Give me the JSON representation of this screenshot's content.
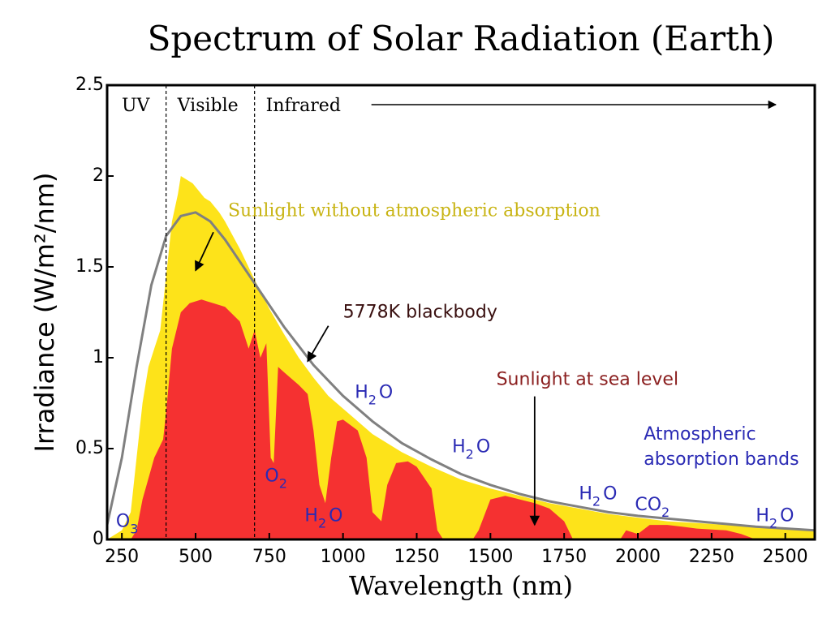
{
  "chart_data": {
    "type": "area",
    "title": "Spectrum of Solar Radiation (Earth)",
    "xlabel": "Wavelength (nm)",
    "ylabel": "Irradiance (W/m²/nm)",
    "xlim": [
      200,
      2600
    ],
    "ylim": [
      0,
      2.5
    ],
    "x_ticks": [
      250,
      500,
      750,
      1000,
      1250,
      1500,
      1750,
      2000,
      2250,
      2500
    ],
    "x_tick_labels": [
      "250",
      "500",
      "750",
      "1000",
      "1250",
      "1500",
      "1750",
      "2000",
      "2250",
      "2500"
    ],
    "y_ticks": [
      0,
      0.5,
      1,
      1.5,
      2,
      2.5
    ],
    "y_tick_labels": [
      "0",
      "0.5",
      "1",
      "1.5",
      "2",
      "2.5"
    ],
    "grid": false,
    "colors": {
      "top_of_atmosphere": "#fde31a",
      "sea_level": "#f53131",
      "blackbody": "#808080",
      "absorption_label": "#2a2ab4",
      "top_label": "#c8b414",
      "sea_label": "#8b2020",
      "blackbody_label": "#3a1010"
    },
    "regions": [
      {
        "label": "UV",
        "x_range": [
          200,
          400
        ]
      },
      {
        "label": "Visible",
        "x_range": [
          400,
          700
        ]
      },
      {
        "label": "Infrared",
        "x_range": [
          700,
          2600
        ]
      }
    ],
    "series": [
      {
        "name": "Sunlight without atmospheric absorption",
        "kind": "area",
        "points": [
          [
            200,
            0.0
          ],
          [
            250,
            0.05
          ],
          [
            280,
            0.15
          ],
          [
            300,
            0.45
          ],
          [
            320,
            0.75
          ],
          [
            340,
            0.95
          ],
          [
            360,
            1.05
          ],
          [
            380,
            1.15
          ],
          [
            400,
            1.45
          ],
          [
            420,
            1.75
          ],
          [
            440,
            1.9
          ],
          [
            450,
            2.0
          ],
          [
            470,
            1.98
          ],
          [
            490,
            1.96
          ],
          [
            510,
            1.92
          ],
          [
            530,
            1.88
          ],
          [
            550,
            1.86
          ],
          [
            580,
            1.8
          ],
          [
            600,
            1.75
          ],
          [
            650,
            1.6
          ],
          [
            700,
            1.43
          ],
          [
            750,
            1.27
          ],
          [
            800,
            1.13
          ],
          [
            850,
            1.0
          ],
          [
            900,
            0.89
          ],
          [
            950,
            0.79
          ],
          [
            1000,
            0.72
          ],
          [
            1100,
            0.58
          ],
          [
            1200,
            0.48
          ],
          [
            1300,
            0.4
          ],
          [
            1400,
            0.33
          ],
          [
            1500,
            0.28
          ],
          [
            1600,
            0.24
          ],
          [
            1700,
            0.2
          ],
          [
            1800,
            0.17
          ],
          [
            1900,
            0.14
          ],
          [
            2000,
            0.12
          ],
          [
            2100,
            0.1
          ],
          [
            2200,
            0.09
          ],
          [
            2300,
            0.08
          ],
          [
            2400,
            0.07
          ],
          [
            2500,
            0.06
          ],
          [
            2600,
            0.05
          ]
        ]
      },
      {
        "name": "Sunlight at sea level",
        "kind": "area",
        "points": [
          [
            280,
            0.0
          ],
          [
            300,
            0.05
          ],
          [
            320,
            0.22
          ],
          [
            360,
            0.45
          ],
          [
            390,
            0.55
          ],
          [
            400,
            0.7
          ],
          [
            420,
            1.05
          ],
          [
            450,
            1.25
          ],
          [
            480,
            1.3
          ],
          [
            520,
            1.32
          ],
          [
            560,
            1.3
          ],
          [
            600,
            1.28
          ],
          [
            650,
            1.2
          ],
          [
            680,
            1.05
          ],
          [
            700,
            1.15
          ],
          [
            720,
            1.0
          ],
          [
            740,
            1.08
          ],
          [
            755,
            0.45
          ],
          [
            765,
            0.42
          ],
          [
            780,
            0.95
          ],
          [
            800,
            0.92
          ],
          [
            850,
            0.85
          ],
          [
            880,
            0.8
          ],
          [
            900,
            0.6
          ],
          [
            920,
            0.3
          ],
          [
            940,
            0.2
          ],
          [
            960,
            0.45
          ],
          [
            980,
            0.65
          ],
          [
            1000,
            0.66
          ],
          [
            1050,
            0.6
          ],
          [
            1080,
            0.45
          ],
          [
            1100,
            0.15
          ],
          [
            1130,
            0.1
          ],
          [
            1150,
            0.3
          ],
          [
            1180,
            0.42
          ],
          [
            1220,
            0.43
          ],
          [
            1250,
            0.4
          ],
          [
            1300,
            0.28
          ],
          [
            1320,
            0.05
          ],
          [
            1340,
            0.0
          ],
          [
            1440,
            0.0
          ],
          [
            1460,
            0.05
          ],
          [
            1500,
            0.22
          ],
          [
            1550,
            0.24
          ],
          [
            1600,
            0.22
          ],
          [
            1650,
            0.2
          ],
          [
            1700,
            0.17
          ],
          [
            1750,
            0.1
          ],
          [
            1780,
            0.0
          ],
          [
            1940,
            0.0
          ],
          [
            1960,
            0.05
          ],
          [
            2000,
            0.03
          ],
          [
            2040,
            0.08
          ],
          [
            2100,
            0.08
          ],
          [
            2150,
            0.07
          ],
          [
            2200,
            0.06
          ],
          [
            2300,
            0.05
          ],
          [
            2350,
            0.03
          ],
          [
            2400,
            0.0
          ]
        ]
      },
      {
        "name": "5778K blackbody",
        "kind": "line",
        "points": [
          [
            200,
            0.08
          ],
          [
            250,
            0.45
          ],
          [
            300,
            0.95
          ],
          [
            350,
            1.4
          ],
          [
            400,
            1.67
          ],
          [
            450,
            1.78
          ],
          [
            500,
            1.8
          ],
          [
            550,
            1.75
          ],
          [
            600,
            1.65
          ],
          [
            650,
            1.53
          ],
          [
            700,
            1.41
          ],
          [
            800,
            1.17
          ],
          [
            900,
            0.96
          ],
          [
            1000,
            0.79
          ],
          [
            1100,
            0.65
          ],
          [
            1200,
            0.53
          ],
          [
            1300,
            0.44
          ],
          [
            1400,
            0.36
          ],
          [
            1500,
            0.3
          ],
          [
            1600,
            0.25
          ],
          [
            1700,
            0.21
          ],
          [
            1800,
            0.18
          ],
          [
            1900,
            0.15
          ],
          [
            2000,
            0.13
          ],
          [
            2200,
            0.1
          ],
          [
            2400,
            0.07
          ],
          [
            2600,
            0.05
          ]
        ]
      }
    ],
    "annotations": [
      {
        "text": "Sunlight without atmospheric absorption",
        "x": 610,
        "y": 1.78,
        "arrow_to": [
          500,
          1.48
        ],
        "style": "top"
      },
      {
        "text": "5778K blackbody",
        "x": 1000,
        "y": 1.22,
        "arrow_to": [
          880,
          0.98
        ],
        "style": "blackbody"
      },
      {
        "text": "Sunlight at sea level",
        "x": 1520,
        "y": 0.85,
        "arrow_to": [
          1650,
          0.08
        ],
        "style": "sea"
      },
      {
        "text": "Atmospheric",
        "x": 2020,
        "y": 0.55,
        "style": "absorption"
      },
      {
        "text": "absorption bands",
        "x": 2020,
        "y": 0.41,
        "style": "absorption"
      }
    ],
    "absorption_bands": [
      {
        "molecule": "O",
        "sub": "3",
        "x": 230,
        "y": 0.07
      },
      {
        "molecule": "O",
        "sub": "2",
        "x": 735,
        "y": 0.32
      },
      {
        "molecule": "H",
        "sub": "2",
        "after": "O",
        "x": 870,
        "y": 0.1
      },
      {
        "molecule": "H",
        "sub": "2",
        "after": "O",
        "x": 1040,
        "y": 0.78
      },
      {
        "molecule": "H",
        "sub": "2",
        "after": "O",
        "x": 1370,
        "y": 0.48
      },
      {
        "molecule": "H",
        "sub": "2",
        "after": "O",
        "x": 1800,
        "y": 0.22
      },
      {
        "molecule": "CO",
        "sub": "2",
        "x": 1990,
        "y": 0.16
      },
      {
        "molecule": "H",
        "sub": "2",
        "after": "O",
        "x": 2400,
        "y": 0.1
      }
    ]
  }
}
